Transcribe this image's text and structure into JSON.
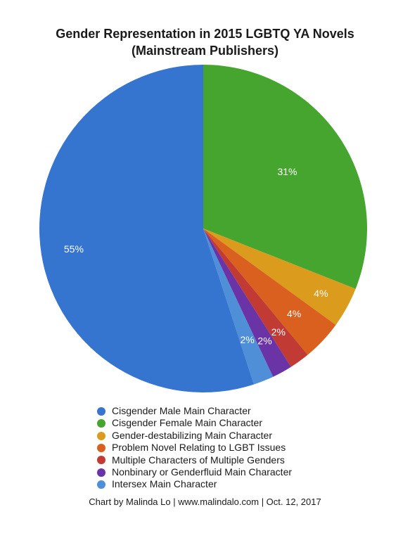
{
  "chart_data": {
    "type": "pie",
    "title": "Gender Representation in 2015 LGBTQ YA Novels",
    "subtitle": "(Mainstream Publishers)",
    "slices": [
      {
        "label": "Cisgender Female Main Character",
        "value": 31,
        "display": "31%",
        "color": "#45a52f"
      },
      {
        "label": "Gender-destabilizing Main Character",
        "value": 4,
        "display": "4%",
        "color": "#db9b1d"
      },
      {
        "label": "Problem Novel Relating to LGBT Issues",
        "value": 4,
        "display": "4%",
        "color": "#d9601f"
      },
      {
        "label": "Multiple Characters of Multiple Genders",
        "value": 2,
        "display": "2%",
        "color": "#c13a33"
      },
      {
        "label": "Nonbinary or Genderfluid Main Character",
        "value": 2,
        "display": "2%",
        "color": "#6a33a6"
      },
      {
        "label": "Intersex Main Character",
        "value": 2,
        "display": "2%",
        "color": "#4f8fd8"
      },
      {
        "label": "Cisgender Male Main Character",
        "value": 55,
        "display": "55%",
        "color": "#3574cf"
      }
    ],
    "legend": [
      {
        "label": "Cisgender Male Main Character",
        "color": "#3574cf"
      },
      {
        "label": "Cisgender Female Main Character",
        "color": "#45a52f"
      },
      {
        "label": "Gender-destabilizing Main Character",
        "color": "#db9b1d"
      },
      {
        "label": "Problem Novel Relating to LGBT Issues",
        "color": "#d9601f"
      },
      {
        "label": "Multiple Characters of Multiple Genders",
        "color": "#c13a33"
      },
      {
        "label": "Nonbinary or Genderfluid Main Character",
        "color": "#6a33a6"
      },
      {
        "label": "Intersex Main Character",
        "color": "#4f8fd8"
      }
    ],
    "legend_position": "bottom"
  },
  "footer": {
    "credit": "Chart by Malinda Lo | www.malindalo.com | Oct. 12, 2017"
  }
}
